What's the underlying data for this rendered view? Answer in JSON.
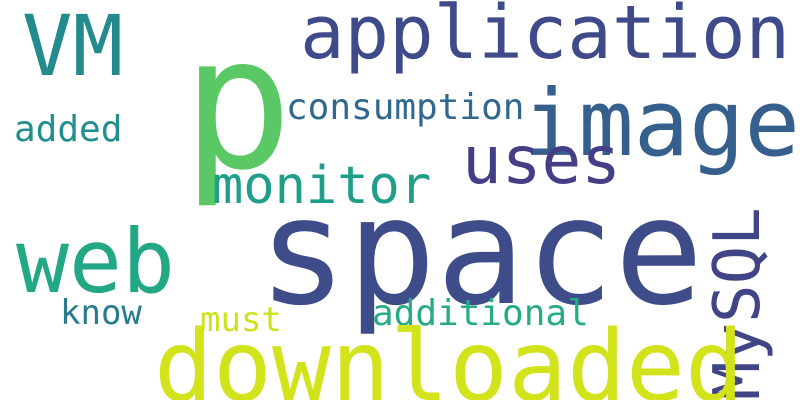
{
  "words": [
    {
      "text": "VM",
      "color": "#238a8d"
    },
    {
      "text": "p",
      "color": "#5ac864"
    },
    {
      "text": "application",
      "color": "#3e4a89"
    },
    {
      "text": "image",
      "color": "#355f8d"
    },
    {
      "text": "consumption",
      "color": "#31688e"
    },
    {
      "text": "added",
      "color": "#218f8d"
    },
    {
      "text": "uses",
      "color": "#433e85"
    },
    {
      "text": "monitor",
      "color": "#1f9e89"
    },
    {
      "text": "space",
      "color": "#3e4c8a"
    },
    {
      "text": "web",
      "color": "#22a884"
    },
    {
      "text": "MySQL",
      "color": "#404588"
    },
    {
      "text": "know",
      "color": "#287c8e"
    },
    {
      "text": "must",
      "color": "#cde11d"
    },
    {
      "text": "additional",
      "color": "#25ac82"
    },
    {
      "text": "downloaded",
      "color": "#d2e21b"
    }
  ]
}
